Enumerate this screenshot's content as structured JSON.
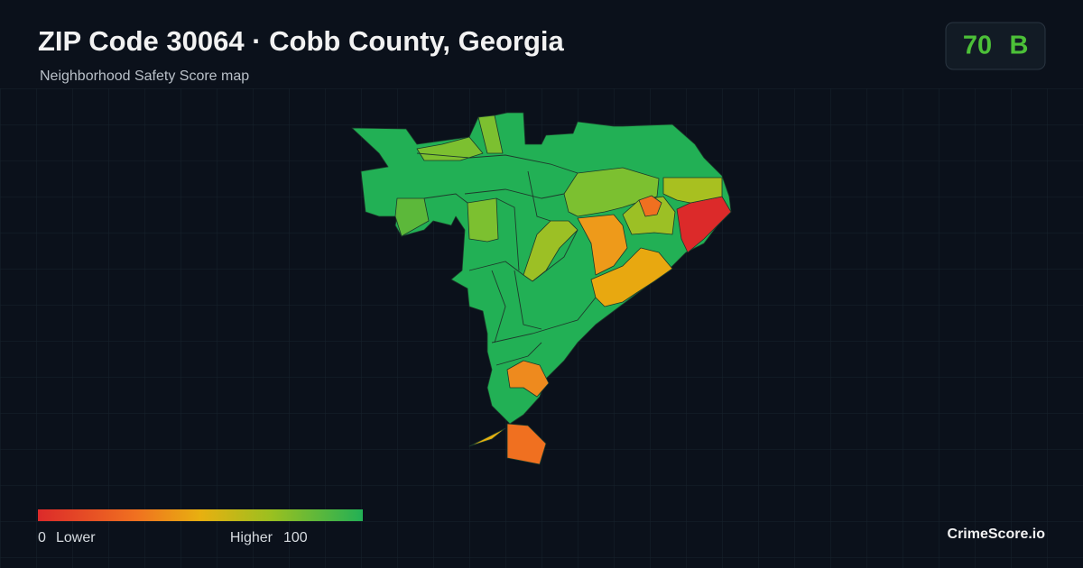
{
  "header": {
    "title": "ZIP Code 30064 · Cobb County, Georgia",
    "subtitle": "Neighborhood Safety Score map"
  },
  "score": {
    "value": 70,
    "grade": "B"
  },
  "legend": {
    "min": 0,
    "min_label": "Lower",
    "max_label": "Higher",
    "max": 100
  },
  "brand": "CrimeScore.io"
}
